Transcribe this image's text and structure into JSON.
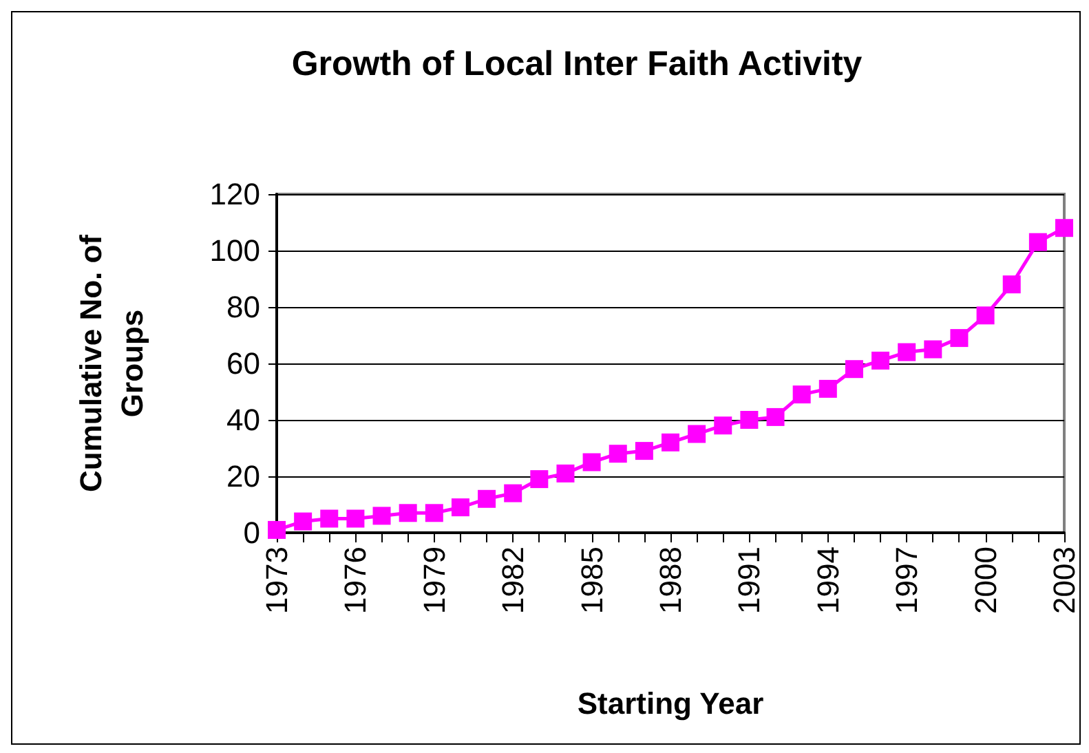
{
  "chart_data": {
    "type": "line",
    "title": "Growth of Local Inter Faith Activity",
    "xlabel": "Starting Year",
    "ylabel": "Cumulative No. of\nGroups",
    "categories": [
      "1973",
      null,
      null,
      "1976",
      null,
      null,
      "1979",
      null,
      null,
      "1982",
      null,
      null,
      "1985",
      null,
      null,
      "1988",
      null,
      null,
      "1991",
      null,
      null,
      "1994",
      null,
      null,
      "1997",
      null,
      null,
      "2000",
      null,
      null,
      "2003"
    ],
    "series": [
      {
        "color": "#ff00ff",
        "values": [
          1,
          4,
          5,
          5,
          6,
          7,
          7,
          9,
          12,
          14,
          19,
          21,
          25,
          28,
          29,
          32,
          35,
          38,
          40,
          41,
          49,
          51,
          58,
          61,
          64,
          65,
          69,
          77,
          88,
          103,
          108
        ]
      }
    ],
    "ylim": [
      0,
      120
    ],
    "yticks": [
      0,
      20,
      40,
      60,
      80,
      100,
      120
    ],
    "grid": "y",
    "marker": "square",
    "line_style": "solid"
  }
}
